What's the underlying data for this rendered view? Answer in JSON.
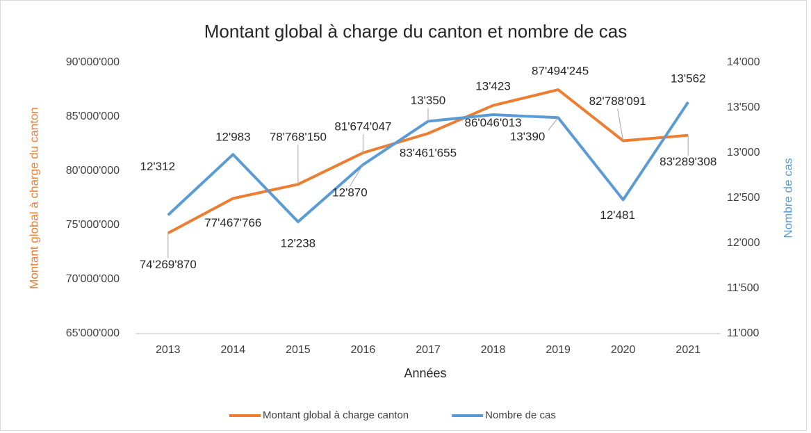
{
  "chart_data": {
    "type": "line",
    "title": "Montant global à charge du canton et nombre de cas",
    "xlabel": "Années",
    "ylabel": "Montant global à charge du canton",
    "y2label": "Nombre de cas",
    "categories": [
      "2013",
      "2014",
      "2015",
      "2016",
      "2017",
      "2018",
      "2019",
      "2020",
      "2021"
    ],
    "series": [
      {
        "name": "Montant global à charge canton",
        "color": "#ed7d31",
        "axis": "y",
        "values": [
          74269870,
          77467766,
          78768150,
          81674047,
          83461655,
          86046013,
          87494245,
          82788091,
          83289308
        ],
        "value_labels": [
          "74'269'870",
          "77'467'766",
          "78'768'150",
          "81'674'047",
          "83'461'655",
          "86'046'013",
          "87'494'245",
          "82'788'091",
          "83'289'308"
        ]
      },
      {
        "name": "Nombre de cas",
        "color": "#5b9bd5",
        "axis": "y2",
        "values": [
          12312,
          12983,
          12238,
          12870,
          13350,
          13423,
          13390,
          12481,
          13562
        ],
        "value_labels": [
          "12'312",
          "12'983",
          "12'238",
          "12'870",
          "13'350",
          "13'423",
          "13'390",
          "12'481",
          "13'562"
        ]
      }
    ],
    "ylim": [
      65000000,
      90000000
    ],
    "yticks": [
      {
        "value": 65000000,
        "label": "65'000'000"
      },
      {
        "value": 70000000,
        "label": "70'000'000"
      },
      {
        "value": 75000000,
        "label": "75'000'000"
      },
      {
        "value": 80000000,
        "label": "80'000'000"
      },
      {
        "value": 85000000,
        "label": "85'000'000"
      },
      {
        "value": 90000000,
        "label": "90'000'000"
      }
    ],
    "y2lim": [
      11000,
      14000
    ],
    "y2ticks": [
      {
        "value": 11000,
        "label": "11'000"
      },
      {
        "value": 11500,
        "label": "11'500"
      },
      {
        "value": 12000,
        "label": "12'000"
      },
      {
        "value": 12500,
        "label": "12'500"
      },
      {
        "value": 13000,
        "label": "13'000"
      },
      {
        "value": 13500,
        "label": "13'500"
      },
      {
        "value": 14000,
        "label": "14'000"
      }
    ],
    "grid": false,
    "legend": "bottom"
  }
}
